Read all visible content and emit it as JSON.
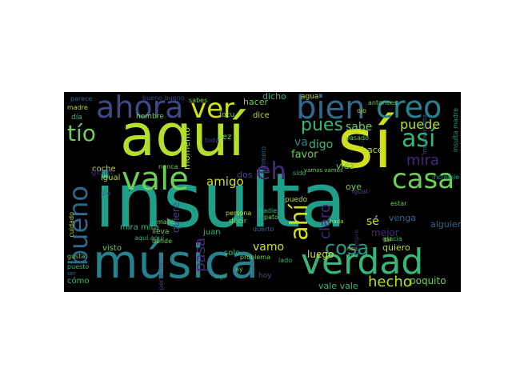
{
  "word_cloud": {
    "background": "#000000",
    "palette": [
      "#fde725",
      "#b5de2b",
      "#6ece58",
      "#35b779",
      "#1f9e89",
      "#26828e",
      "#31688e",
      "#3e4989",
      "#482878",
      "#440154"
    ],
    "words": [
      {
        "text": "insulta",
        "color": "#1f9e89"
      },
      {
        "text": "aquí",
        "color": "#b5de2b"
      },
      {
        "text": "sí",
        "color": "#d0e11c"
      },
      {
        "text": "música",
        "color": "#26828e"
      },
      {
        "text": "verdad",
        "color": "#35b779"
      },
      {
        "text": "ahora",
        "color": "#3e4989"
      },
      {
        "text": "bien",
        "color": "#31688e"
      },
      {
        "text": "creo",
        "color": "#26828e"
      },
      {
        "text": "ver",
        "color": "#d0e11c"
      },
      {
        "text": "vale",
        "color": "#6ece58"
      },
      {
        "text": "bueno",
        "color": "#31688e"
      },
      {
        "text": "casa",
        "color": "#6ece58"
      },
      {
        "text": "así",
        "color": "#35b779"
      },
      {
        "text": "tío",
        "color": "#6ece58"
      },
      {
        "text": "eh",
        "color": "#482878"
      },
      {
        "text": "ahí",
        "color": "#d0e11c"
      },
      {
        "text": "pues",
        "color": "#35b779"
      },
      {
        "text": "cosa",
        "color": "#1f9e89"
      },
      {
        "text": "mira",
        "color": "#482878"
      },
      {
        "text": "puede",
        "color": "#b5de2b"
      },
      {
        "text": "claro",
        "color": "#482878"
      },
      {
        "text": "hecho",
        "color": "#b5de2b"
      },
      {
        "text": "pasa",
        "color": "#482878"
      },
      {
        "text": "amigo",
        "color": "#d0e11c"
      },
      {
        "text": "vamo",
        "color": "#d0e11c"
      },
      {
        "text": "va",
        "color": "#26828e"
      },
      {
        "text": "digo",
        "color": "#35b779"
      },
      {
        "text": "sabe",
        "color": "#6ece58"
      },
      {
        "text": "favor",
        "color": "#6ece58"
      },
      {
        "text": "luego",
        "color": "#d0e11c"
      },
      {
        "text": "vale vale",
        "color": "#35b779"
      },
      {
        "text": "poquito",
        "color": "#6ece58"
      },
      {
        "text": "quiero",
        "color": "#b5de2b"
      },
      {
        "text": "sé",
        "color": "#d0e11c"
      },
      {
        "text": "vida",
        "color": "#6ece58"
      },
      {
        "text": "hace",
        "color": "#b5de2b"
      },
      {
        "text": "oye",
        "color": "#6ece58"
      },
      {
        "text": "venga",
        "color": "#31688e"
      },
      {
        "text": "mejor",
        "color": "#482878"
      },
      {
        "text": "alguien",
        "color": "#31688e"
      },
      {
        "text": "dicho",
        "color": "#35b779"
      },
      {
        "text": "hacer",
        "color": "#6ece58"
      },
      {
        "text": "dice",
        "color": "#b5de2b"
      },
      {
        "text": "agua",
        "color": "#b5de2b"
      },
      {
        "text": "momento",
        "color": "#b5de2b"
      },
      {
        "text": "hombre",
        "color": "#6ece58"
      },
      {
        "text": "coche",
        "color": "#b5de2b"
      },
      {
        "text": "igual",
        "color": "#b5de2b"
      },
      {
        "text": "gente",
        "color": "#482878"
      },
      {
        "text": "día",
        "color": "#35b779"
      },
      {
        "text": "madre",
        "color": "#b5de2b"
      },
      {
        "text": "parece",
        "color": "#31688e"
      },
      {
        "text": "dos",
        "color": "#3e4989"
      },
      {
        "text": "quiere",
        "color": "#3e4989"
      },
      {
        "text": "visto",
        "color": "#6ece58"
      },
      {
        "text": "mira mira",
        "color": "#35b779"
      },
      {
        "text": "solo",
        "color": "#35b779"
      },
      {
        "text": "cómo",
        "color": "#35b779"
      },
      {
        "text": "hoy",
        "color": "#3e4989"
      },
      {
        "text": "vez",
        "color": "#6ece58"
      },
      {
        "text": "lleva",
        "color": "#6ece58"
      },
      {
        "text": "juan",
        "color": "#35b779"
      },
      {
        "text": "puedo",
        "color": "#b5de2b"
      },
      {
        "text": "nadie",
        "color": "#35b779"
      },
      {
        "text": "decir",
        "color": "#6ece58"
      },
      {
        "text": "persona",
        "color": "#b5de2b"
      },
      {
        "text": "lado",
        "color": "#35b779"
      },
      {
        "text": "gracia",
        "color": "#35b779"
      },
      {
        "text": "gusta",
        "color": "#6ece58"
      },
      {
        "text": "puesto",
        "color": "#35b779"
      },
      {
        "text": "perfecto",
        "color": "#3e4989"
      },
      {
        "text": "increíble",
        "color": "#1f9e89"
      },
      {
        "text": "antonces",
        "color": "#6ece58"
      },
      {
        "text": "focu",
        "color": "#6ece58"
      },
      {
        "text": "toda",
        "color": "#3e4989"
      },
      {
        "text": "sido",
        "color": "#35b779"
      },
      {
        "text": "dio",
        "color": "#31688e"
      },
      {
        "text": "aquí aquí",
        "color": "#35b779"
      },
      {
        "text": "vamos vamos",
        "color": "#6ece58"
      },
      {
        "text": "insulta madre",
        "color": "#1f9e89"
      },
      {
        "text": "insulta insulta",
        "color": "#31688e"
      },
      {
        "text": "pato",
        "color": "#6ece58"
      },
      {
        "text": "ojo",
        "color": "#b5de2b"
      },
      {
        "text": "primero",
        "color": "#31688e"
      },
      {
        "text": "ay",
        "color": "#6ece58"
      },
      {
        "text": "tal",
        "color": "#d0e11c"
      },
      {
        "text": "duerto",
        "color": "#31688e"
      },
      {
        "text": "risa",
        "color": "#b5de2b"
      },
      {
        "text": "cuidado",
        "color": "#b5de2b"
      },
      {
        "text": "bueno bueno",
        "color": "#3e4989"
      },
      {
        "text": "sabes",
        "color": "#6ece58"
      },
      {
        "text": "nunca",
        "color": "#6ece58"
      },
      {
        "text": "mano",
        "color": "#6ece58"
      },
      {
        "text": "dónde",
        "color": "#6ece58"
      },
      {
        "text": "siempre",
        "color": "#482878"
      },
      {
        "text": "pasado",
        "color": "#6ece58"
      },
      {
        "text": "problema",
        "color": "#6ece58"
      },
      {
        "text": "estar",
        "color": "#6ece58"
      },
      {
        "text": "igual",
        "color": "#3e4989"
      },
      {
        "text": "ser",
        "color": "#31688e"
      },
      {
        "text": "algo",
        "color": "#35b779"
      },
      {
        "text": "nada",
        "color": "#b5de2b"
      }
    ]
  }
}
